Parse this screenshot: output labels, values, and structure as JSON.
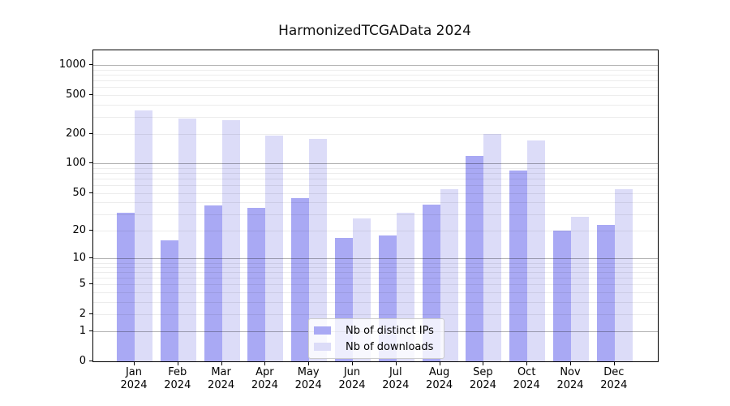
{
  "chart_data": {
    "type": "bar",
    "title": "HarmonizedTCGAData 2024",
    "categories": [
      "Jan 2024",
      "Feb 2024",
      "Mar 2024",
      "Apr 2024",
      "May 2024",
      "Jun 2024",
      "Jul 2024",
      "Aug 2024",
      "Sep 2024",
      "Oct 2024",
      "Nov 2024",
      "Dec 2024"
    ],
    "series": [
      {
        "name": "Nb of distinct IPs",
        "color": "#a9a9f4",
        "values": [
          31,
          16,
          37,
          35,
          44,
          17,
          18,
          38,
          120,
          85,
          20,
          23
        ]
      },
      {
        "name": "Nb of downloads",
        "color": "#dcdcf8",
        "values": [
          350,
          287,
          276,
          193,
          178,
          27,
          31,
          55,
          200,
          172,
          28,
          55
        ]
      }
    ],
    "yscale": "log1p",
    "yticks": [
      0,
      1,
      2,
      5,
      10,
      20,
      50,
      100,
      200,
      500,
      1000
    ],
    "ylim": [
      0,
      1410
    ],
    "xlabel": "",
    "ylabel": "",
    "grid": true,
    "legend_position": "lower center"
  },
  "colors": {
    "major_grid": "#b0b0b0",
    "minor_grid": "#ebebeb",
    "spine": "#000000",
    "text": "#000000"
  }
}
